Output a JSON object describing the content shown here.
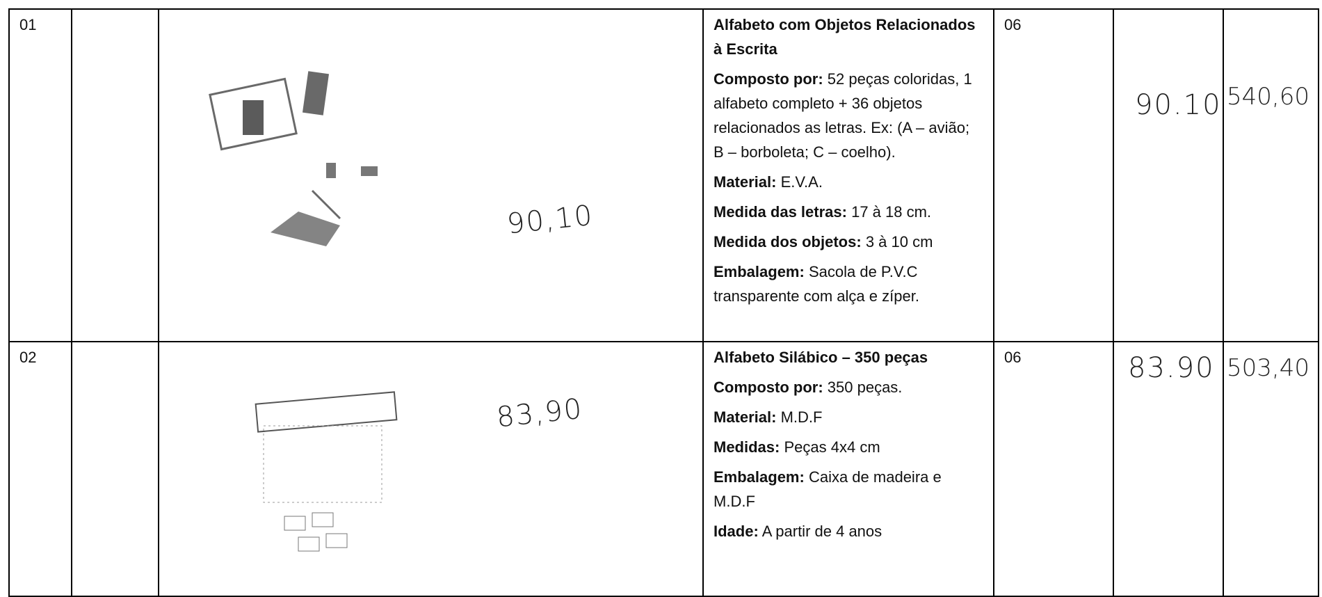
{
  "table": {
    "rows": [
      {
        "number": "01",
        "image_note": "90,10",
        "title": "Alfabeto com Objetos Relacionados à Escrita",
        "details": [
          {
            "label": "Composto por:",
            "text": "52 peças coloridas, 1 alfabeto completo + 36 objetos relacionados as letras. Ex: (A – avião; B – borboleta; C – coelho)."
          },
          {
            "label": "Material:",
            "text": "E.V.A."
          },
          {
            "label": "Medida das letras:",
            "text": "17 à 18 cm."
          },
          {
            "label": "Medida dos objetos:",
            "text": "3 à 10 cm"
          },
          {
            "label": "Embalagem:",
            "text": "Sacola de P.V.C transparente com alça e zíper."
          }
        ],
        "quantity": "06",
        "unit_price": "90.10",
        "total": "540,60"
      },
      {
        "number": "02",
        "image_note": "83,90",
        "title": "Alfabeto Silábico – 350 peças",
        "details": [
          {
            "label": "Composto por:",
            "text": "350 peças."
          },
          {
            "label": "Material:",
            "text": "M.D.F"
          },
          {
            "label": "Medidas:",
            "text": "Peças 4x4 cm"
          },
          {
            "label": "Embalagem:",
            "text": "Caixa de madeira e M.D.F"
          },
          {
            "label": "Idade:",
            "text": "A partir de 4 anos"
          }
        ],
        "quantity": "06",
        "unit_price": "83.90",
        "total": "503,40"
      }
    ]
  }
}
